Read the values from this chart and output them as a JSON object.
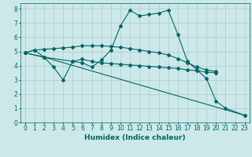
{
  "xlabel": "Humidex (Indice chaleur)",
  "xlim": [
    -0.5,
    23.5
  ],
  "ylim": [
    0,
    8.4
  ],
  "background_color": "#cce8e8",
  "grid_color": "#aacccc",
  "line_color": "#006666",
  "line1_x": [
    0,
    1,
    2,
    3,
    4,
    5,
    6,
    7,
    8,
    9,
    10,
    11,
    12,
    13,
    14,
    15,
    16,
    17,
    18,
    19,
    20,
    21,
    23
  ],
  "line1_y": [
    4.9,
    5.1,
    4.6,
    3.9,
    3.0,
    4.3,
    4.2,
    3.9,
    4.4,
    5.1,
    6.8,
    7.9,
    7.5,
    7.6,
    7.7,
    7.9,
    6.2,
    4.3,
    3.7,
    3.1,
    1.5,
    1.0,
    0.5
  ],
  "line2_x": [
    0,
    1,
    2,
    3,
    4,
    5,
    6,
    7,
    8,
    9,
    10,
    11,
    12,
    13,
    14,
    15,
    16,
    17,
    18,
    19,
    20
  ],
  "line2_y": [
    4.9,
    5.1,
    5.15,
    5.2,
    5.25,
    5.3,
    5.4,
    5.4,
    5.4,
    5.35,
    5.3,
    5.2,
    5.1,
    5.0,
    4.9,
    4.75,
    4.5,
    4.2,
    3.9,
    3.7,
    3.6
  ],
  "line3_x": [
    0,
    2,
    5,
    6,
    7,
    8,
    9,
    10,
    11,
    12,
    13,
    14,
    15,
    16,
    17,
    18,
    19,
    20
  ],
  "line3_y": [
    4.9,
    4.6,
    4.3,
    4.45,
    4.3,
    4.2,
    4.15,
    4.1,
    4.05,
    4.0,
    3.95,
    3.9,
    3.85,
    3.8,
    3.7,
    3.65,
    3.55,
    3.5
  ],
  "line4_x": [
    0,
    2,
    23
  ],
  "line4_y": [
    4.9,
    4.6,
    0.5
  ],
  "xtick_labels": [
    "0",
    "1",
    "2",
    "3",
    "4",
    "5",
    "6",
    "7",
    "8",
    "9",
    "10",
    "11",
    "12",
    "13",
    "14",
    "15",
    "16",
    "17",
    "18",
    "19",
    "20",
    "21",
    "22",
    "23"
  ],
  "ytick_values": [
    0,
    1,
    2,
    3,
    4,
    5,
    6,
    7,
    8
  ],
  "tick_fontsize": 5.5,
  "label_fontsize": 6.5
}
